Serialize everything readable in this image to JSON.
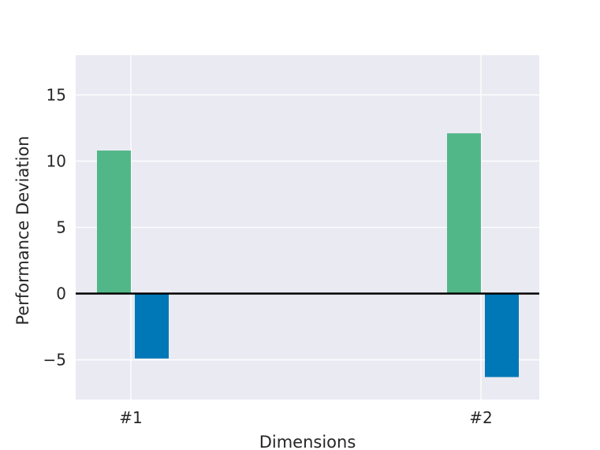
{
  "chart_data": {
    "type": "bar",
    "categories": [
      "#1",
      "#2"
    ],
    "series": [
      {
        "values": [
          10.8,
          12.1
        ],
        "color": "#52b788"
      },
      {
        "values": [
          -4.9,
          -6.3
        ],
        "color": "#0077b6"
      }
    ],
    "title": "",
    "xlabel": "Dimensions",
    "ylabel": "Performance Deviation",
    "ylim": [
      -8,
      18
    ],
    "yticks": [
      -5,
      0,
      5,
      10,
      15
    ],
    "ytick_labels": [
      "−5",
      "0",
      "5",
      "10",
      "15"
    ],
    "grid": true,
    "zero_line": true,
    "background": "#eaeaf2"
  }
}
